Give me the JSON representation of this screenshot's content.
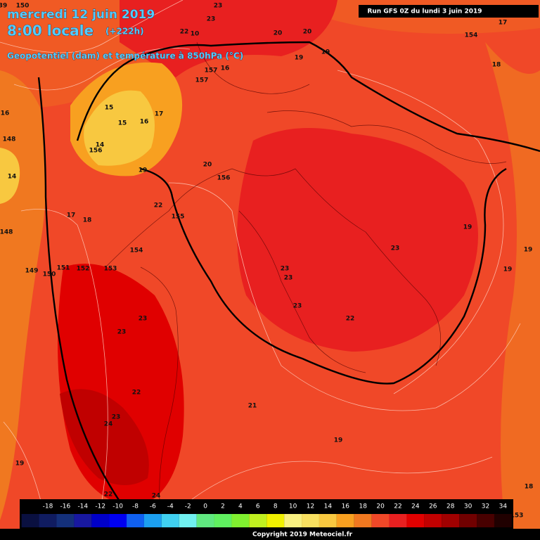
{
  "header": {
    "date": "mercredi 12 juin 2019",
    "time": "8:00 locale",
    "lead": "(+222h)",
    "subtitle": "Geopotentiel (dam) et température à 850hPa (°C)",
    "run": "Run GFS 0Z du lundi 3 juin 2019"
  },
  "map": {
    "labels": [
      23,
      23,
      22,
      10,
      20,
      20,
      154,
      17,
      19,
      19,
      18,
      157,
      16,
      157,
      15,
      17,
      15,
      16,
      156,
      14,
      16,
      148,
      14,
      19,
      20,
      156,
      22,
      155,
      17,
      18,
      148,
      154,
      149,
      150,
      151,
      152,
      153,
      19,
      19,
      19,
      23,
      23,
      23,
      23,
      22,
      23,
      23,
      22,
      21,
      23,
      24,
      19,
      19,
      18,
      22,
      24,
      150,
      39,
      153
    ]
  },
  "color_scale": {
    "labels": [
      -18,
      -16,
      -14,
      -12,
      -10,
      -8,
      -6,
      -4,
      -2,
      0,
      2,
      4,
      6,
      8,
      10,
      12,
      14,
      16,
      18,
      20,
      22,
      24,
      26,
      28,
      30,
      32,
      34
    ],
    "colors": [
      "#0a1040",
      "#101c60",
      "#14307a",
      "#1818a0",
      "#0000c8",
      "#0000f0",
      "#1060f0",
      "#1c9ff0",
      "#40d0f0",
      "#70f0f0",
      "#60e880",
      "#60f060",
      "#80f030",
      "#c0f020",
      "#f0f000",
      "#f8f080",
      "#f8e060",
      "#f8c840",
      "#f8a020",
      "#f07820",
      "#f04828",
      "#e82020",
      "#e00000",
      "#c00000",
      "#a00000",
      "#700000",
      "#480000",
      "#200000"
    ]
  },
  "footer": {
    "copyright": "Copyright 2019 Meteociel.fr"
  }
}
